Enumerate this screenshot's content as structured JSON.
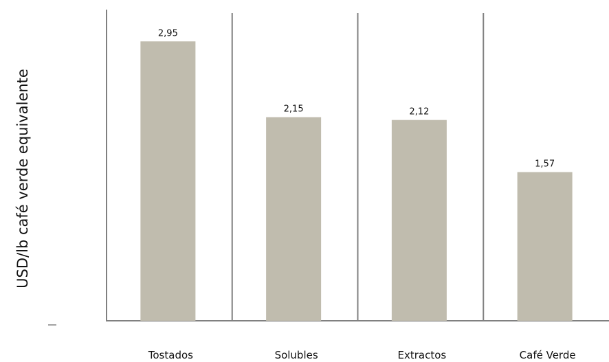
{
  "chart_data": {
    "type": "bar",
    "title": "",
    "xlabel": "",
    "ylabel": "USD/lb café verde equivalente",
    "categories": [
      "Tostados",
      "Solubles",
      "Extractos",
      "Café Verde"
    ],
    "values": [
      2.95,
      2.15,
      2.12,
      1.57
    ],
    "value_labels": [
      "2,95",
      "2,15",
      "2,12",
      "1,57"
    ],
    "ylim": [
      0,
      3.3
    ],
    "grid": false,
    "legend": "none",
    "colors": {
      "bar": "#c0bcae",
      "axis": "#808080",
      "text": "#111111"
    }
  }
}
